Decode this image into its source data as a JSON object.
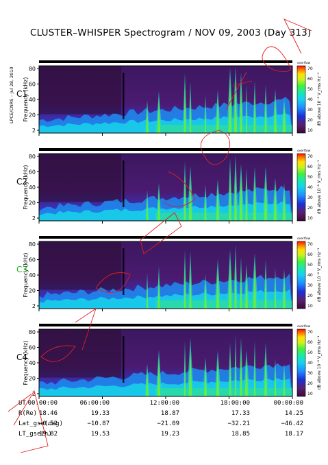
{
  "title": "CLUSTER–WHISPER Spectrogram / NOV 09, 2003 (Day 313)",
  "side_label": "LPCE/CNRS – Jul 28, 2010",
  "colorbar": {
    "label": "dB above 10⁻⁸ V_rms Hz⁻¹",
    "ticks": [
      "70",
      "60",
      "50",
      "40",
      "30",
      "20",
      "10"
    ],
    "top_text": "overflow"
  },
  "chart_data": [
    {
      "type": "heatmap",
      "panel": "C1",
      "label_color": "#000000",
      "ylabel": "Frequency (kHz)",
      "yticks": [
        "80",
        "60",
        "40",
        "20",
        "2"
      ],
      "ylim": [
        2,
        80
      ],
      "zlim": [
        10,
        70
      ],
      "xticks": [
        "00:00:00",
        "06:00:00",
        "12:00:00",
        "18:00:00",
        "00:00:00"
      ]
    },
    {
      "type": "heatmap",
      "panel": "C2",
      "label_color": "#000000",
      "ylabel": "Frequency (kHz)",
      "yticks": [
        "80",
        "60",
        "40",
        "20",
        "2"
      ],
      "ylim": [
        2,
        80
      ],
      "zlim": [
        10,
        70
      ],
      "xticks": [
        "00:00:00",
        "06:00:00",
        "12:00:00",
        "18:00:00",
        "00:00:00"
      ]
    },
    {
      "type": "heatmap",
      "panel": "C3",
      "label_color": "#22aa22",
      "ylabel": "Frequency (kHz)",
      "yticks": [
        "80",
        "60",
        "40",
        "20",
        "2"
      ],
      "ylim": [
        2,
        80
      ],
      "zlim": [
        10,
        70
      ],
      "xticks": [
        "00:00:00",
        "06:00:00",
        "12:00:00",
        "18:00:00",
        "00:00:00"
      ]
    },
    {
      "type": "heatmap",
      "panel": "C4",
      "label_color": "#000000",
      "ylabel": "Frequency (kHz)",
      "yticks": [
        "80",
        "60",
        "40",
        "20",
        "2"
      ],
      "ylim": [
        2,
        80
      ],
      "zlim": [
        10,
        70
      ],
      "xticks": [
        "00:00:00",
        "06:00:00",
        "12:00:00",
        "18:00:00",
        "00:00:00"
      ]
    }
  ],
  "footer": [
    {
      "label": "UT",
      "values": [
        "00:00:00",
        "06:00:00",
        "12:00:00",
        "18:00:00",
        "00:00:00"
      ]
    },
    {
      "label": "R(Re)",
      "values": [
        "18.46",
        "19.33",
        "18.87",
        "17.33",
        "14.25"
      ]
    },
    {
      "label": "Lat_gse(deg)",
      "values": [
        "−0.52",
        "−10.87",
        "−21.09",
        "−32.21",
        "−46.42"
      ]
    },
    {
      "label": "LT_gse(h)",
      "values": [
        "19.82",
        "19.53",
        "19.23",
        "18.85",
        "18.17"
      ]
    }
  ],
  "colors": {
    "scale": [
      "#3a0a38",
      "#5a1e6e",
      "#1c2fd8",
      "#1e90ff",
      "#18c8f0",
      "#18e8b0",
      "#40f040",
      "#c8f020",
      "#ffe000",
      "#ff8000",
      "#ff1000"
    ]
  }
}
